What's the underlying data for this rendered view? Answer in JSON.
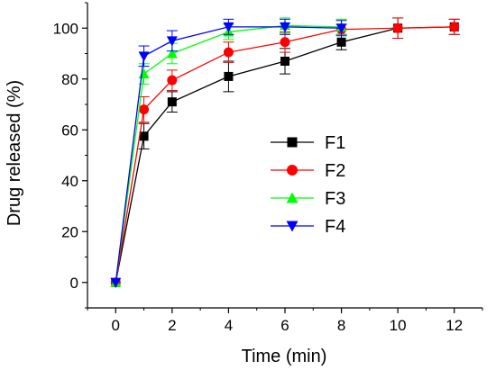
{
  "chart_data": {
    "type": "line",
    "xlabel": "Time (min)",
    "ylabel": "Drug released (%)",
    "xlim": [
      -1,
      13
    ],
    "ylim": [
      -10,
      110
    ],
    "x_ticks": [
      0,
      2,
      4,
      6,
      8,
      10,
      12
    ],
    "y_ticks": [
      0,
      20,
      40,
      60,
      80,
      100
    ],
    "grid": false,
    "legend_position": "right-center",
    "series": [
      {
        "name": "F1",
        "color": "#000000",
        "marker": "square",
        "x": [
          0,
          1,
          2,
          4,
          6,
          8,
          10,
          12
        ],
        "y": [
          0,
          57.5,
          71,
          81,
          87,
          94.5,
          100,
          100.5
        ],
        "err": [
          0,
          5,
          4,
          6,
          5,
          3,
          4,
          3
        ]
      },
      {
        "name": "F2",
        "color": "#ff0000",
        "marker": "circle",
        "x": [
          0,
          1,
          2,
          4,
          6,
          8,
          10,
          12
        ],
        "y": [
          0,
          68,
          79.5,
          90.5,
          94.5,
          99.5,
          100,
          100.5
        ],
        "err": [
          0,
          5,
          4,
          4,
          4,
          2,
          4,
          3
        ]
      },
      {
        "name": "F3",
        "color": "#00ff00",
        "marker": "triangle-up",
        "x": [
          0,
          1,
          2,
          4,
          6,
          8
        ],
        "y": [
          0,
          82,
          90,
          98.5,
          101,
          100.5
        ],
        "err": [
          0,
          4,
          4,
          3,
          3,
          3
        ]
      },
      {
        "name": "F4",
        "color": "#0000ff",
        "marker": "triangle-down",
        "x": [
          0,
          1,
          2,
          4,
          6,
          8
        ],
        "y": [
          0,
          89,
          95,
          100.5,
          100.5,
          100
        ],
        "err": [
          0,
          4,
          4,
          3,
          3,
          3
        ]
      }
    ]
  }
}
